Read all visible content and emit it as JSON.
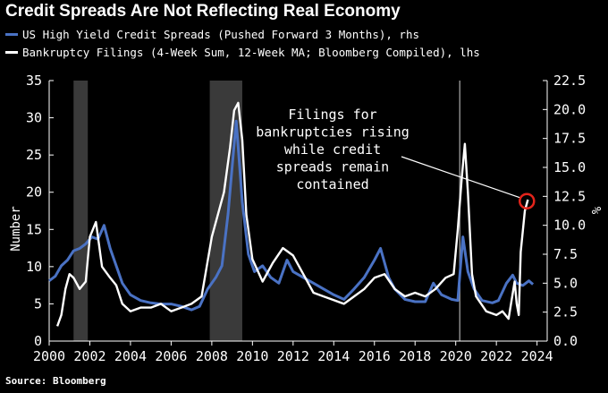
{
  "chart_data": {
    "type": "line",
    "title": "Credit Spreads Are Not Reflecting Real Economy",
    "ylabel_left": "Number",
    "ylabel_right": "%",
    "ylim_left": [
      0,
      35
    ],
    "ylim_right": [
      0,
      22.5
    ],
    "xlim": [
      2000,
      2024.5
    ],
    "left_ticks": [
      "0",
      "5",
      "10",
      "15",
      "20",
      "25",
      "30",
      "35"
    ],
    "right_ticks": [
      "0.0",
      "2.5",
      "5.0",
      "7.5",
      "10.0",
      "12.5",
      "15.0",
      "17.5",
      "20.0",
      "22.5"
    ],
    "x_ticks": [
      "2000",
      "2002",
      "2004",
      "2006",
      "2008",
      "2010",
      "2012",
      "2014",
      "2016",
      "2018",
      "2020",
      "2022",
      "2024"
    ],
    "recessions": [
      [
        2001.2,
        2001.9
      ],
      [
        2007.9,
        2009.5
      ]
    ],
    "vertical_marker": 2020.2,
    "series": [
      {
        "name": "US High Yield Credit Spreads (Pushed Forward 3 Months), rhs",
        "axis": "right",
        "color": "#4a72c4",
        "x": [
          2000.0,
          2000.3,
          2000.6,
          2000.9,
          2001.2,
          2001.5,
          2001.8,
          2002.1,
          2002.4,
          2002.7,
          2003.0,
          2003.3,
          2003.6,
          2004.0,
          2004.5,
          2005.0,
          2005.5,
          2006.0,
          2006.5,
          2007.0,
          2007.4,
          2007.8,
          2008.2,
          2008.5,
          2008.8,
          2009.0,
          2009.2,
          2009.5,
          2009.8,
          2010.1,
          2010.5,
          2010.9,
          2011.3,
          2011.7,
          2012.0,
          2012.5,
          2013.0,
          2013.5,
          2014.0,
          2014.5,
          2015.0,
          2015.5,
          2016.0,
          2016.3,
          2016.7,
          2017.0,
          2017.5,
          2018.0,
          2018.5,
          2018.9,
          2019.3,
          2019.8,
          2020.1,
          2020.35,
          2020.6,
          2020.9,
          2021.3,
          2021.8,
          2022.1,
          2022.5,
          2022.8,
          2023.0,
          2023.3,
          2023.6,
          2023.8
        ],
        "values": [
          5.2,
          5.6,
          6.5,
          7.0,
          7.8,
          8.0,
          8.4,
          9.0,
          8.8,
          10.0,
          8.0,
          6.5,
          5.0,
          4.0,
          3.5,
          3.3,
          3.2,
          3.2,
          3.0,
          2.7,
          3.0,
          4.5,
          5.5,
          6.5,
          11.0,
          15.0,
          19.0,
          12.0,
          7.5,
          6.0,
          6.5,
          5.5,
          5.0,
          7.0,
          6.0,
          5.5,
          5.0,
          4.5,
          4.0,
          3.6,
          4.5,
          5.5,
          7.0,
          8.0,
          5.5,
          4.5,
          3.6,
          3.4,
          3.4,
          5.0,
          4.0,
          3.6,
          3.5,
          9.0,
          6.0,
          4.5,
          3.5,
          3.3,
          3.5,
          5.0,
          5.7,
          5.0,
          4.8,
          5.2,
          4.9
        ]
      },
      {
        "name": "Bankruptcy Filings (4-Week Sum, 12-Week MA; Bloomberg Compiled), lhs",
        "axis": "left",
        "color": "#ffffff",
        "x": [
          2000.4,
          2000.6,
          2000.8,
          2001.0,
          2001.2,
          2001.5,
          2001.8,
          2002.0,
          2002.3,
          2002.6,
          2003.0,
          2003.3,
          2003.6,
          2004.0,
          2004.5,
          2005.0,
          2005.5,
          2006.0,
          2006.5,
          2007.0,
          2007.5,
          2008.0,
          2008.3,
          2008.6,
          2008.9,
          2009.1,
          2009.3,
          2009.5,
          2009.7,
          2010.0,
          2010.5,
          2011.0,
          2011.5,
          2012.0,
          2012.5,
          2013.0,
          2013.5,
          2014.0,
          2014.5,
          2015.0,
          2015.5,
          2016.0,
          2016.5,
          2017.0,
          2017.5,
          2018.0,
          2018.5,
          2019.0,
          2019.5,
          2019.9,
          2020.1,
          2020.3,
          2020.45,
          2020.6,
          2020.8,
          2021.0,
          2021.5,
          2022.0,
          2022.3,
          2022.6,
          2022.9,
          2023.0,
          2023.1,
          2023.2,
          2023.4,
          2023.55
        ],
        "values": [
          2.0,
          3.5,
          7.0,
          9.0,
          8.5,
          7.0,
          8.0,
          14.0,
          16.0,
          10.0,
          8.5,
          7.5,
          5.0,
          4.0,
          4.5,
          4.5,
          5.0,
          4.0,
          4.5,
          5.0,
          6.0,
          14.0,
          17.0,
          20.0,
          26.0,
          31.0,
          32.0,
          27.0,
          17.0,
          11.0,
          8.0,
          10.5,
          12.5,
          11.5,
          9.0,
          6.5,
          6.0,
          5.5,
          5.0,
          6.0,
          7.0,
          8.5,
          9.0,
          7.0,
          6.0,
          6.5,
          6.0,
          7.0,
          8.5,
          9.0,
          15.0,
          22.0,
          26.5,
          20.0,
          9.0,
          6.0,
          4.0,
          3.5,
          4.0,
          3.0,
          8.0,
          5.0,
          3.5,
          12.0,
          17.5,
          19.0
        ]
      }
    ],
    "annotation": {
      "lines": [
        "Filings for",
        "bankruptcies rising",
        "while credit",
        "spreads remain",
        "contained"
      ],
      "target_x": 2023.5,
      "target_y": 18.8
    },
    "source": "Source: Bloomberg"
  },
  "colors": {
    "background": "#000000",
    "blue": "#4a72c4",
    "white": "#ffffff",
    "recession": "#3a3a3a",
    "marker": "#e3241b"
  }
}
